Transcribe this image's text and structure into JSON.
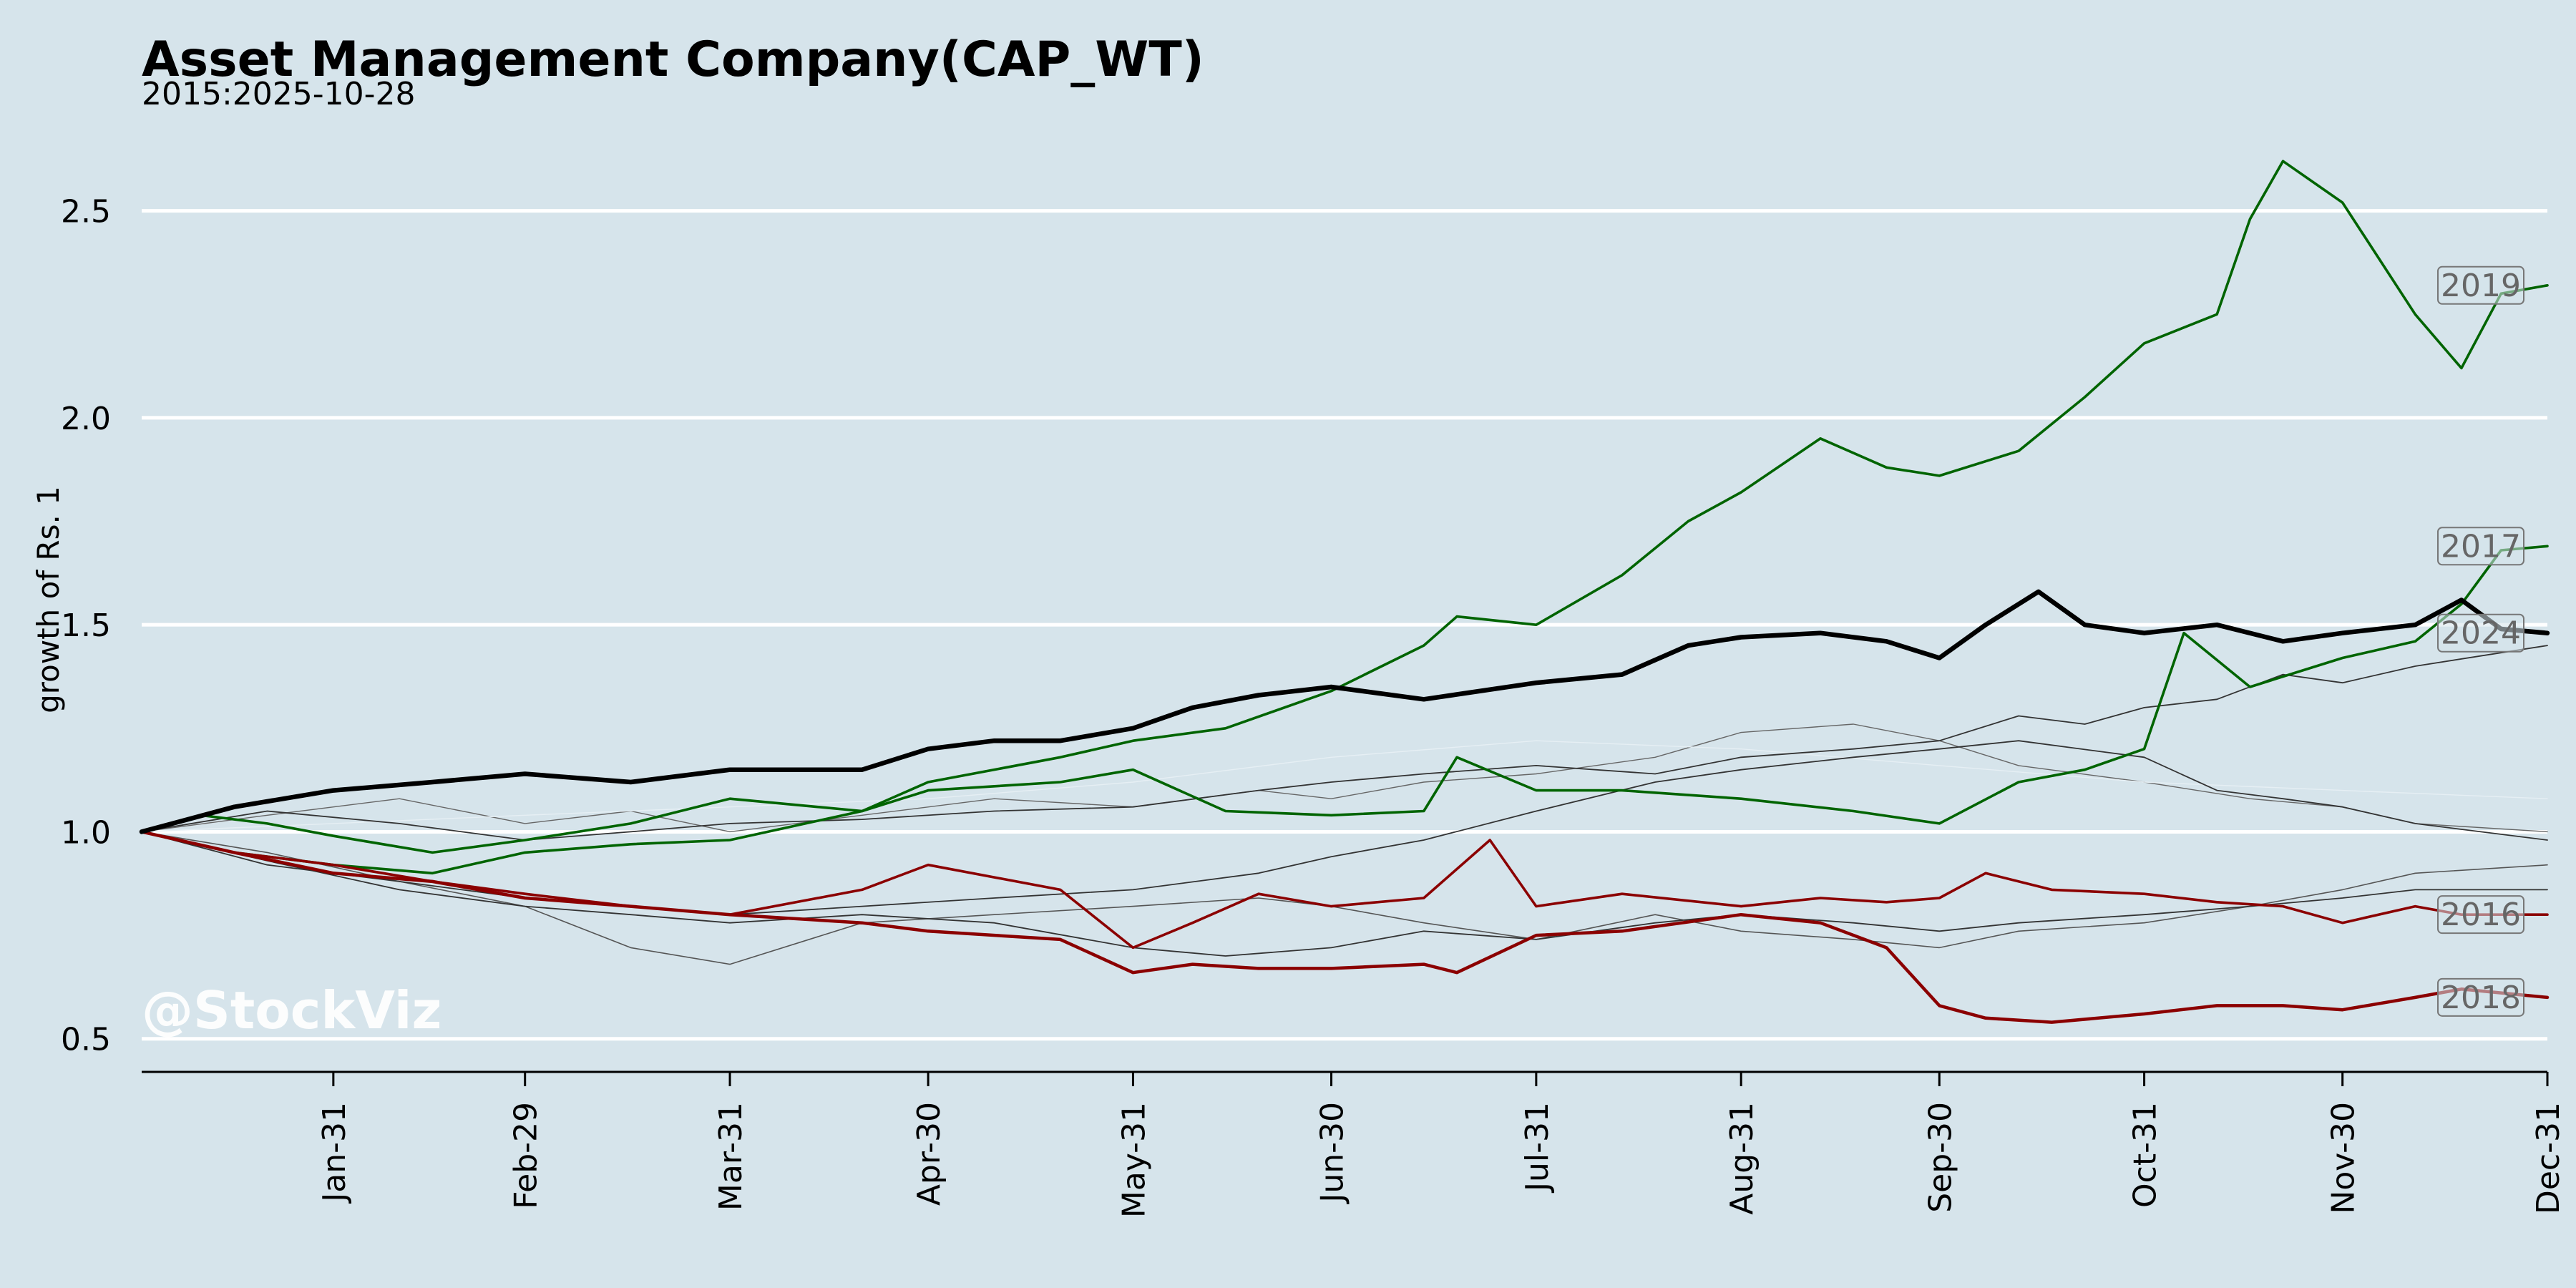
{
  "chart_data": {
    "type": "line",
    "title": "Asset Management Company(CAP_WT)",
    "subtitle": "2015:2025-10-28",
    "xlabel": "",
    "ylabel": "growth of Rs. 1",
    "watermark": "@StockViz",
    "x_ticks": [
      "Jan-31",
      "Feb-29",
      "Mar-31",
      "Apr-30",
      "May-31",
      "Jun-30",
      "Jul-31",
      "Aug-31",
      "Sep-30",
      "Oct-31",
      "Nov-30",
      "Dec-31"
    ],
    "x_tick_days": [
      30,
      59,
      90,
      120,
      151,
      181,
      212,
      243,
      273,
      304,
      334,
      365
    ],
    "xlim": [
      1,
      365
    ],
    "ylim": [
      0.42,
      2.75
    ],
    "y_ticks": [
      0.5,
      1.0,
      1.5,
      2.0,
      2.5
    ],
    "y_tick_labels": [
      "0.5",
      "1.0",
      "1.5",
      "2.0",
      "2.5"
    ],
    "grid": "horizontal",
    "colors": {
      "background": "#d6e4eb",
      "grid": "#ffffff",
      "up_year": "#006400",
      "down_year": "#8b0000",
      "current_year": "#000000",
      "other": "#333333",
      "label_text": "#666666"
    },
    "series": [
      {
        "name": "2019",
        "color": "#006400",
        "width": 3.6,
        "label": true,
        "x": [
          1,
          10,
          20,
          30,
          45,
          59,
          75,
          90,
          110,
          120,
          140,
          151,
          165,
          181,
          195,
          200,
          212,
          225,
          235,
          243,
          255,
          265,
          273,
          285,
          295,
          304,
          315,
          320,
          325,
          334,
          345,
          352,
          358,
          365
        ],
        "y": [
          1.0,
          1.04,
          1.02,
          0.99,
          0.95,
          0.98,
          1.02,
          1.08,
          1.05,
          1.12,
          1.18,
          1.22,
          1.25,
          1.34,
          1.45,
          1.52,
          1.5,
          1.62,
          1.75,
          1.82,
          1.95,
          1.88,
          1.86,
          1.92,
          2.05,
          2.18,
          2.25,
          2.48,
          2.62,
          2.52,
          2.25,
          2.12,
          2.3,
          2.32
        ]
      },
      {
        "name": "2017",
        "color": "#006400",
        "width": 3.6,
        "label": true,
        "x": [
          1,
          15,
          30,
          45,
          59,
          75,
          90,
          110,
          120,
          140,
          151,
          165,
          181,
          195,
          200,
          212,
          225,
          243,
          260,
          273,
          285,
          295,
          304,
          310,
          320,
          334,
          345,
          352,
          358,
          365
        ],
        "y": [
          1.0,
          0.95,
          0.92,
          0.9,
          0.95,
          0.97,
          0.98,
          1.05,
          1.1,
          1.12,
          1.15,
          1.05,
          1.04,
          1.05,
          1.18,
          1.1,
          1.1,
          1.08,
          1.05,
          1.02,
          1.12,
          1.15,
          1.2,
          1.48,
          1.35,
          1.42,
          1.46,
          1.55,
          1.68,
          1.69
        ]
      },
      {
        "name": "2024",
        "color": "#000000",
        "width": 6.5,
        "label": true,
        "x": [
          1,
          15,
          30,
          45,
          59,
          75,
          90,
          110,
          120,
          130,
          140,
          151,
          160,
          170,
          181,
          195,
          212,
          225,
          235,
          243,
          255,
          265,
          273,
          280,
          288,
          295,
          304,
          315,
          325,
          334,
          345,
          352,
          358,
          365
        ],
        "y": [
          1.0,
          1.06,
          1.1,
          1.12,
          1.14,
          1.12,
          1.15,
          1.15,
          1.2,
          1.22,
          1.22,
          1.25,
          1.3,
          1.33,
          1.35,
          1.32,
          1.36,
          1.38,
          1.45,
          1.47,
          1.48,
          1.46,
          1.42,
          1.5,
          1.58,
          1.5,
          1.48,
          1.5,
          1.46,
          1.48,
          1.5,
          1.56,
          1.49,
          1.48
        ]
      },
      {
        "name": "2016",
        "color": "#8b0000",
        "width": 3.6,
        "label": true,
        "x": [
          1,
          15,
          30,
          45,
          59,
          75,
          90,
          110,
          120,
          140,
          151,
          160,
          170,
          181,
          195,
          205,
          212,
          225,
          243,
          255,
          265,
          273,
          280,
          290,
          304,
          315,
          325,
          334,
          345,
          352,
          365
        ],
        "y": [
          1.0,
          0.95,
          0.92,
          0.88,
          0.85,
          0.82,
          0.8,
          0.86,
          0.92,
          0.86,
          0.72,
          0.78,
          0.85,
          0.82,
          0.84,
          0.98,
          0.82,
          0.85,
          0.82,
          0.84,
          0.83,
          0.84,
          0.9,
          0.86,
          0.85,
          0.83,
          0.82,
          0.78,
          0.82,
          0.8,
          0.8
        ]
      },
      {
        "name": "2018",
        "color": "#8b0000",
        "width": 4.5,
        "label": true,
        "x": [
          1,
          15,
          30,
          45,
          59,
          75,
          90,
          110,
          120,
          140,
          151,
          160,
          170,
          181,
          195,
          200,
          212,
          225,
          243,
          255,
          265,
          273,
          280,
          290,
          304,
          315,
          325,
          334,
          345,
          352,
          365
        ],
        "y": [
          1.0,
          0.95,
          0.9,
          0.88,
          0.84,
          0.82,
          0.8,
          0.78,
          0.76,
          0.74,
          0.66,
          0.68,
          0.67,
          0.67,
          0.68,
          0.66,
          0.75,
          0.76,
          0.8,
          0.78,
          0.72,
          0.58,
          0.55,
          0.54,
          0.56,
          0.58,
          0.58,
          0.57,
          0.6,
          0.62,
          0.6
        ]
      },
      {
        "name": "",
        "color": "#333333",
        "width": 1.8,
        "label": false,
        "x": [
          1,
          20,
          40,
          59,
          75,
          90,
          110,
          130,
          151,
          170,
          181,
          195,
          212,
          230,
          243,
          260,
          273,
          285,
          295,
          304,
          315,
          325,
          334,
          345,
          365
        ],
        "y": [
          1.0,
          1.05,
          1.02,
          0.98,
          1.0,
          1.02,
          1.03,
          1.05,
          1.06,
          1.1,
          1.12,
          1.14,
          1.16,
          1.14,
          1.18,
          1.2,
          1.22,
          1.28,
          1.26,
          1.3,
          1.32,
          1.38,
          1.36,
          1.4,
          1.45
        ]
      },
      {
        "name": "",
        "color": "#333333",
        "width": 1.8,
        "label": false,
        "x": [
          1,
          20,
          40,
          59,
          75,
          90,
          110,
          130,
          151,
          170,
          181,
          195,
          212,
          230,
          243,
          260,
          273,
          285,
          304,
          315,
          325,
          334,
          345,
          365
        ],
        "y": [
          1.0,
          0.92,
          0.88,
          0.84,
          0.82,
          0.8,
          0.82,
          0.84,
          0.86,
          0.9,
          0.94,
          0.98,
          1.05,
          1.12,
          1.15,
          1.18,
          1.2,
          1.22,
          1.18,
          1.1,
          1.08,
          1.06,
          1.02,
          0.98
        ]
      },
      {
        "name": "",
        "color": "#555555",
        "width": 1.6,
        "label": false,
        "x": [
          1,
          20,
          40,
          59,
          75,
          90,
          110,
          130,
          151,
          170,
          181,
          195,
          212,
          230,
          243,
          260,
          273,
          285,
          304,
          320,
          334,
          345,
          365
        ],
        "y": [
          1.0,
          0.95,
          0.88,
          0.82,
          0.72,
          0.68,
          0.78,
          0.8,
          0.82,
          0.84,
          0.82,
          0.78,
          0.74,
          0.8,
          0.76,
          0.74,
          0.72,
          0.76,
          0.78,
          0.82,
          0.86,
          0.9,
          0.92
        ]
      },
      {
        "name": "",
        "color": "#333333",
        "width": 1.8,
        "label": false,
        "x": [
          1,
          20,
          40,
          59,
          75,
          90,
          110,
          130,
          151,
          165,
          181,
          195,
          212,
          230,
          243,
          260,
          273,
          285,
          304,
          320,
          334,
          345,
          365
        ],
        "y": [
          1.0,
          0.93,
          0.86,
          0.82,
          0.8,
          0.78,
          0.8,
          0.78,
          0.72,
          0.7,
          0.72,
          0.76,
          0.74,
          0.78,
          0.8,
          0.78,
          0.76,
          0.78,
          0.8,
          0.82,
          0.84,
          0.86,
          0.86
        ]
      },
      {
        "name": "",
        "color": "#666666",
        "width": 1.4,
        "label": false,
        "x": [
          1,
          20,
          40,
          59,
          75,
          90,
          110,
          130,
          151,
          170,
          181,
          195,
          212,
          230,
          243,
          260,
          273,
          285,
          304,
          320,
          334,
          345,
          365
        ],
        "y": [
          1.0,
          1.04,
          1.08,
          1.02,
          1.05,
          1.0,
          1.04,
          1.08,
          1.06,
          1.1,
          1.08,
          1.12,
          1.14,
          1.18,
          1.24,
          1.26,
          1.22,
          1.16,
          1.12,
          1.08,
          1.06,
          1.02,
          1.0
        ]
      },
      {
        "name": "",
        "color": "#e6eff4",
        "width": 1.4,
        "label": false,
        "x": [
          1,
          30,
          59,
          90,
          120,
          151,
          181,
          212,
          243,
          273,
          304,
          334,
          365
        ],
        "y": [
          1.0,
          1.02,
          1.04,
          1.06,
          1.08,
          1.12,
          1.18,
          1.22,
          1.2,
          1.16,
          1.12,
          1.1,
          1.08
        ]
      }
    ]
  }
}
